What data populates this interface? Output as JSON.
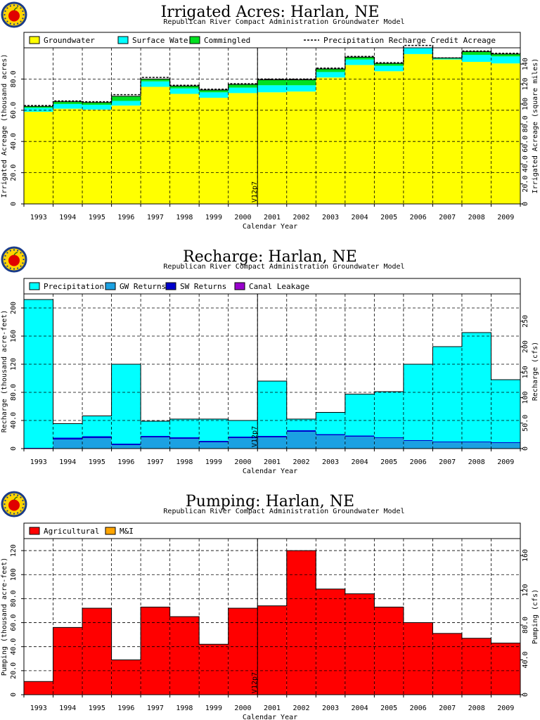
{
  "colors": {
    "groundwater": "#ffff00",
    "surface_water": "#00ffff",
    "commingled": "#00e020",
    "precip_line": "#000000",
    "precipitation": "#00ffff",
    "gw_returns": "#1ba1e2",
    "sw_returns": "#0000cc",
    "canal_leakage": "#9900cc",
    "agricultural": "#ff0000",
    "mi": "#ffa500"
  },
  "icons": {
    "logo": "apple-logo-icon"
  },
  "chart_data": [
    {
      "type": "area",
      "title": "Irrigated Acres: Harlan, NE",
      "subtitle": "Republican River Compact Administration Groundwater Model",
      "xlabel": "Calendar Year",
      "ylabel": "Irrigated Acreage (thousand acres)",
      "ylabel_right": "Irrigated Acreage (square miles)",
      "ylim": [
        0,
        100
      ],
      "yticks": [
        0,
        20,
        40,
        60,
        80
      ],
      "ytick_labels": [
        "0",
        "20.0",
        "40.0",
        "60.0",
        "80.0"
      ],
      "yticks_right": [
        0,
        20,
        40,
        60,
        80,
        100,
        120,
        140
      ],
      "ytick_labels_right": [
        "0",
        "20.0",
        "40.0",
        "60.0",
        "80.0",
        "100",
        "120",
        "140"
      ],
      "right_scale": 1.5625,
      "categories": [
        "1993",
        "1994",
        "1995",
        "1996",
        "1997",
        "1998",
        "1999",
        "2000",
        "2001",
        "2002",
        "2003",
        "2004",
        "2005",
        "2006",
        "2007",
        "2008",
        "2009"
      ],
      "vline_label": "V12p7",
      "vline_after": "2000",
      "legend": [
        "Groundwater",
        "Surface Water",
        "Commingled",
        "Precipitation Recharge Credit Acreage"
      ],
      "series": [
        {
          "name": "Groundwater",
          "values": [
            59,
            61,
            60.5,
            63,
            75,
            70.5,
            68,
            71,
            71.5,
            72,
            81,
            89,
            85,
            96,
            92.5,
            91,
            90
          ]
        },
        {
          "name": "Surface Water",
          "values": [
            2.5,
            3,
            3,
            3,
            3.5,
            3.5,
            3.5,
            3.5,
            4.5,
            4,
            3.5,
            3.5,
            3.5,
            4,
            0.5,
            4.5,
            4.5
          ]
        },
        {
          "name": "Commingled",
          "values": [
            1,
            1.5,
            1.5,
            3,
            1.5,
            1.5,
            1.5,
            2,
            3.5,
            3.5,
            2,
            1.5,
            1.5,
            1.5,
            0.5,
            2,
            1.5
          ]
        }
      ],
      "line": {
        "name": "Precipitation Recharge Credit Acreage",
        "values": [
          63,
          66,
          65.5,
          70,
          81,
          76,
          73.5,
          77,
          80,
          80,
          87,
          94.5,
          90.5,
          101.5,
          93.5,
          98,
          96.5
        ]
      }
    },
    {
      "type": "area",
      "title": "Recharge: Harlan, NE",
      "subtitle": "Republican River Compact Administration Groundwater Model",
      "xlabel": "Calendar Year",
      "ylabel": "Recharge (thousand acre-feet)",
      "ylabel_right": "Recharge (cfs)",
      "ylim": [
        0,
        220
      ],
      "yticks": [
        0,
        40,
        80,
        120,
        160,
        200
      ],
      "ytick_labels": [
        "0",
        "40.0",
        "80.0",
        "120",
        "160",
        "200"
      ],
      "yticks_right": [
        0,
        50,
        100,
        150,
        200,
        250
      ],
      "ytick_labels_right": [
        "0",
        "50.0",
        "100",
        "150",
        "200",
        "250"
      ],
      "right_scale": 1.38,
      "categories": [
        "1993",
        "1994",
        "1995",
        "1996",
        "1997",
        "1998",
        "1999",
        "2000",
        "2001",
        "2002",
        "2003",
        "2004",
        "2005",
        "2006",
        "2007",
        "2008",
        "2009"
      ],
      "vline_label": "V12p7",
      "vline_after": "2000",
      "legend": [
        "Precipitation",
        "GW Returns",
        "SW Returns",
        "Canal Leakage"
      ],
      "series": [
        {
          "name": "GW Returns",
          "values": [
            0.5,
            13,
            15,
            5,
            16,
            14,
            9,
            15,
            16,
            24,
            19,
            17,
            15,
            11,
            9,
            9,
            8
          ]
        },
        {
          "name": "SW Returns",
          "values": [
            0.5,
            2.5,
            2.5,
            2,
            2,
            2,
            2,
            2,
            2,
            2,
            1.5,
            1.5,
            1,
            1,
            1,
            1,
            1
          ]
        },
        {
          "name": "Canal Leakage",
          "values": [
            0,
            0,
            0,
            0,
            0,
            0,
            0,
            0,
            0,
            0,
            0,
            0,
            0,
            0,
            0,
            0,
            0
          ]
        },
        {
          "name": "Precipitation",
          "values": [
            211,
            20,
            29,
            113,
            21,
            26,
            31,
            23,
            78,
            16,
            31,
            59,
            65,
            108,
            135,
            155,
            89
          ]
        }
      ]
    },
    {
      "type": "area",
      "title": "Pumping: Harlan, NE",
      "subtitle": "Republican River Compact Administration Groundwater Model",
      "xlabel": "Calendar Year",
      "ylabel": "Pumping (thousand acre-feet)",
      "ylabel_right": "Pumping (cfs)",
      "ylim": [
        0,
        130
      ],
      "yticks": [
        0,
        20,
        40,
        60,
        80,
        100,
        120
      ],
      "ytick_labels": [
        "0",
        "20.0",
        "40.0",
        "60.0",
        "80.0",
        "100",
        "120"
      ],
      "yticks_right": [
        0,
        40,
        80,
        120,
        160
      ],
      "ytick_labels_right": [
        "0",
        "40.0",
        "80.0",
        "120",
        "160"
      ],
      "right_scale": 1.38,
      "categories": [
        "1993",
        "1994",
        "1995",
        "1996",
        "1997",
        "1998",
        "1999",
        "2000",
        "2001",
        "2002",
        "2003",
        "2004",
        "2005",
        "2006",
        "2007",
        "2008",
        "2009"
      ],
      "vline_label": "V12p7",
      "vline_after": "2000",
      "legend": [
        "Agricultural",
        "M&I"
      ],
      "series": [
        {
          "name": "Agricultural",
          "values": [
            11,
            56,
            72,
            29,
            73,
            65,
            42,
            72,
            74,
            120,
            88,
            84,
            73,
            60,
            51,
            47,
            43
          ]
        },
        {
          "name": "M&I",
          "values": [
            0,
            0,
            0,
            0,
            0,
            0,
            0,
            0,
            0,
            0,
            0,
            0,
            0,
            0,
            0,
            0,
            0
          ]
        }
      ]
    }
  ]
}
